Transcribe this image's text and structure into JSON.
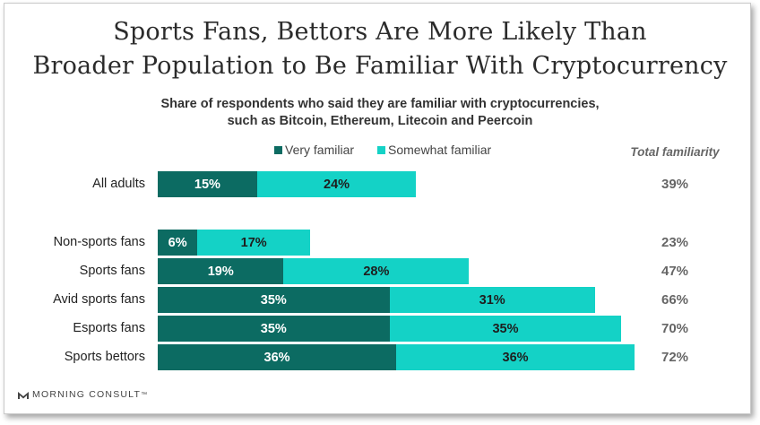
{
  "colors": {
    "very": "#0c6b62",
    "somewhat": "#14d2c6"
  },
  "chart_data": {
    "type": "bar",
    "orientation": "horizontal",
    "stacked": true,
    "title_lines": [
      "Sports Fans, Bettors Are More Likely Than",
      "Broader Population to Be Familiar With Cryptocurrency"
    ],
    "subtitle_lines": [
      "Share of respondents who said they are familiar with cryptocurrencies,",
      "such as Bitcoin, Ethereum, Litecoin and Peercoin"
    ],
    "legend": [
      "Very familiar",
      "Somewhat familiar"
    ],
    "total_header": "Total familiarity",
    "categories": [
      "All adults",
      "Non-sports fans",
      "Sports fans",
      "Avid sports fans",
      "Esports fans",
      "Sports bettors"
    ],
    "series": [
      {
        "name": "Very familiar",
        "values": [
          15,
          6,
          19,
          35,
          35,
          36
        ],
        "labels": [
          "15%",
          "6%",
          "19%",
          "35%",
          "35%",
          "36%"
        ]
      },
      {
        "name": "Somewhat familiar",
        "values": [
          24,
          17,
          28,
          31,
          35,
          36
        ],
        "labels": [
          "24%",
          "17%",
          "28%",
          "31%",
          "35%",
          "36%"
        ]
      }
    ],
    "totals": [
      "39%",
      "23%",
      "47%",
      "66%",
      "70%",
      "72%"
    ]
  },
  "brand": {
    "name": "MORNING CONSULT",
    "mark": "™"
  }
}
